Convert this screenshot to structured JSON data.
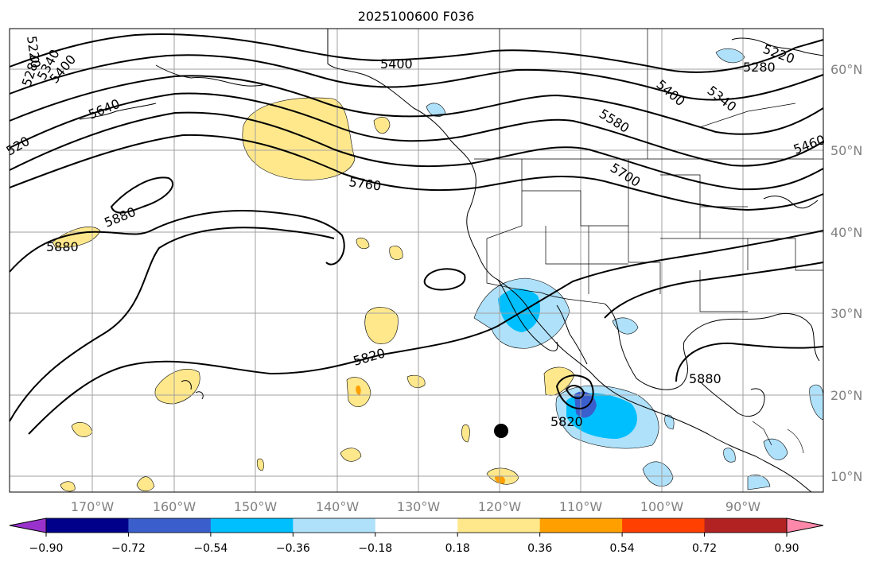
{
  "title": "2025100600 F036",
  "map": {
    "lat_labels": [
      "60°N",
      "50°N",
      "40°N",
      "30°N",
      "20°N",
      "10°N"
    ],
    "lon_labels": [
      "170°W",
      "160°W",
      "150°W",
      "140°W",
      "130°W",
      "120°W",
      "110°W",
      "100°W",
      "90°W"
    ]
  },
  "contour_labels": [
    "5280",
    "5220",
    "5400",
    "5340",
    "5400",
    "5580",
    "5460",
    "5640",
    "5760",
    "5700",
    "5880",
    "5880",
    "5820",
    "5880",
    "5820",
    "5220",
    "5280",
    "5340",
    "5400",
    "520"
  ],
  "colorbar": {
    "ticks": [
      "−0.90",
      "−0.72",
      "−0.54",
      "−0.36",
      "−0.18",
      "0.18",
      "0.36",
      "0.54",
      "0.72",
      "0.90"
    ],
    "colors": [
      "#9932cc",
      "#00008b",
      "#3a5fcd",
      "#00bfff",
      "#afe1fa",
      "#ffffff",
      "#ffe88c",
      "#ffa000",
      "#ff4000",
      "#b22222",
      "#ff88aa"
    ]
  },
  "marker": {
    "label": ""
  }
}
